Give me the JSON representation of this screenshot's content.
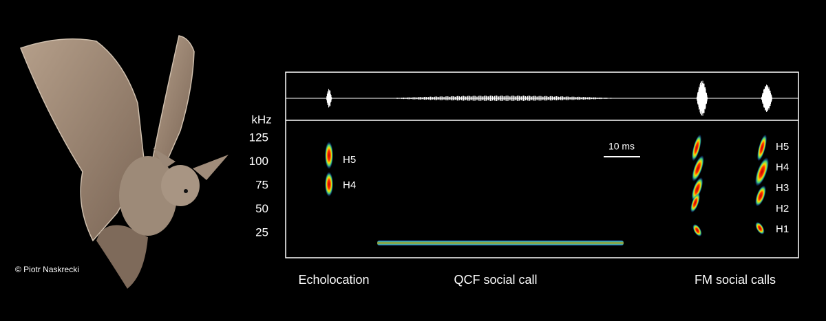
{
  "credit": "© Piotr Naskrecki",
  "panel": {
    "axis_unit": "kHz",
    "yticks": [
      "125",
      "100",
      "75",
      "50",
      "25"
    ],
    "scale_bar": "10 ms",
    "echolocation_harmonics": [
      "H5",
      "H4"
    ],
    "fm_harmonics": [
      "H5",
      "H4",
      "H3",
      "H2",
      "H1"
    ]
  },
  "labels": [
    "Echolocation",
    "QCF social call",
    "FM social calls"
  ]
}
